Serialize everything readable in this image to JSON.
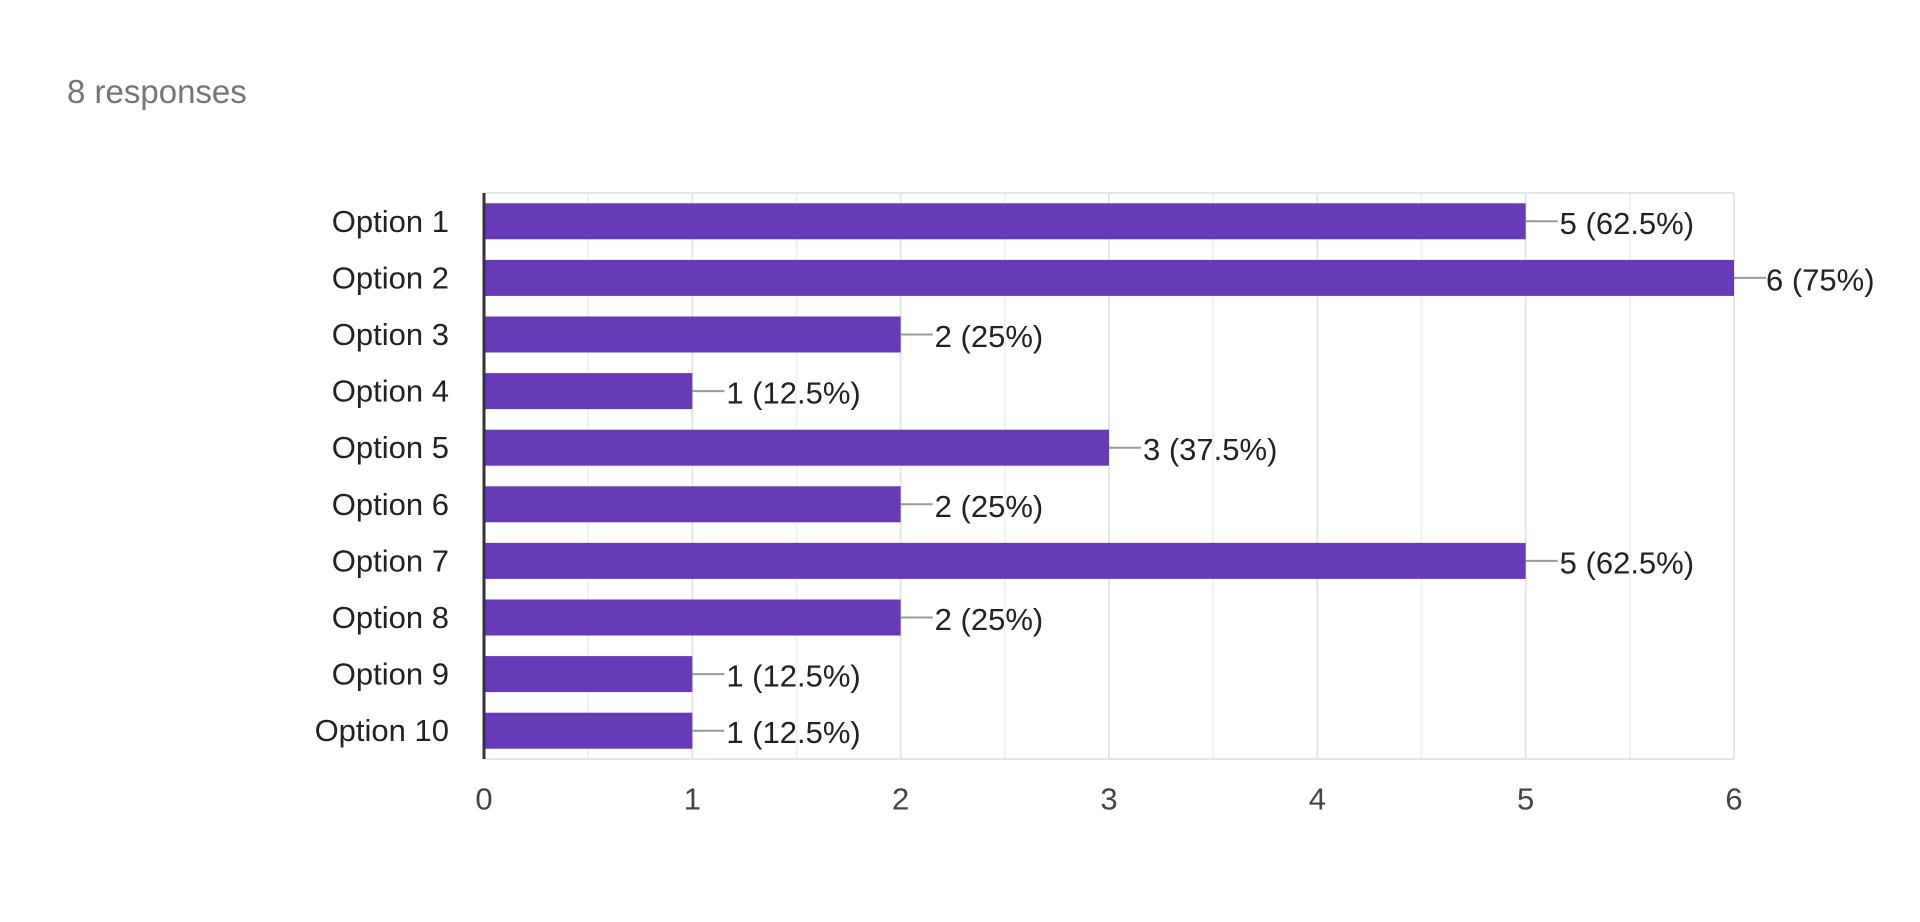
{
  "header": {
    "responses_text": "8 responses"
  },
  "colors": {
    "bar": "#673ab7",
    "grid_major": "#e6e6e6",
    "grid_minor": "#f2f2f2",
    "axis": "#333333",
    "connector": "#999999"
  },
  "chart_data": {
    "type": "bar",
    "orientation": "horizontal",
    "categories": [
      "Option 1",
      "Option 2",
      "Option 3",
      "Option 4",
      "Option 5",
      "Option 6",
      "Option 7",
      "Option 8",
      "Option 9",
      "Option 10"
    ],
    "values": [
      5,
      6,
      2,
      1,
      3,
      2,
      5,
      2,
      1,
      1
    ],
    "data_labels": [
      "5 (62.5%)",
      "6 (75%)",
      "2 (25%)",
      "1 (12.5%)",
      "3 (37.5%)",
      "2 (25%)",
      "5 (62.5%)",
      "2 (25%)",
      "1 (12.5%)",
      "1 (12.5%)"
    ],
    "xlim": [
      0,
      6
    ],
    "xticks": [
      "0",
      "1",
      "2",
      "3",
      "4",
      "5",
      "6"
    ],
    "grid": true,
    "title": "",
    "xlabel": "",
    "ylabel": ""
  }
}
